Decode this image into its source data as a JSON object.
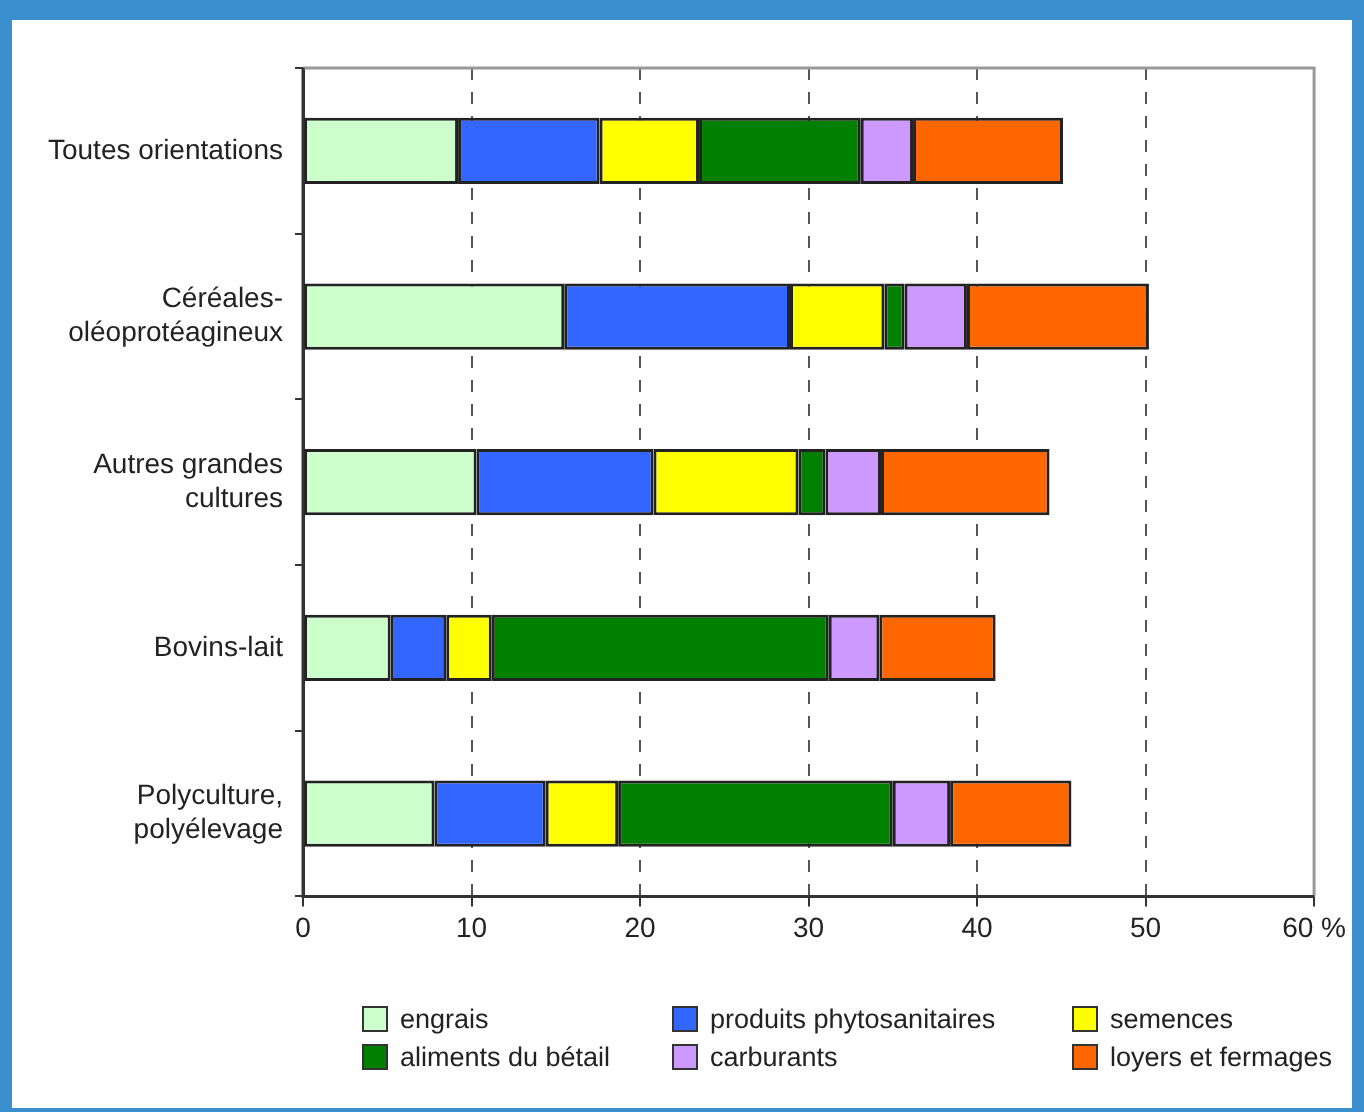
{
  "chart_data": {
    "type": "bar",
    "orientation": "horizontal",
    "stacked": true,
    "categories": [
      "Toutes orientations",
      "Céréales-\noléoprotéagineux",
      "Autres grandes\ncultures",
      "Bovins-lait",
      "Polyculture,\npolyélevage"
    ],
    "series": [
      {
        "name": "engrais",
        "color": "#ccffcc",
        "values": [
          9.2,
          15.5,
          10.3,
          5.2,
          7.8
        ]
      },
      {
        "name": "produits phytosanitaires",
        "color": "#3366ff",
        "values": [
          8.4,
          13.4,
          10.5,
          3.3,
          6.6
        ]
      },
      {
        "name": "semences",
        "color": "#ffff00",
        "values": [
          5.9,
          5.6,
          8.6,
          2.7,
          4.3
        ]
      },
      {
        "name": "aliments du bétail",
        "color": "#008000",
        "values": [
          9.6,
          1.2,
          1.6,
          20.0,
          16.3
        ]
      },
      {
        "name": "carburants",
        "color": "#cc99ff",
        "values": [
          3.1,
          3.7,
          3.3,
          3.0,
          3.4
        ]
      },
      {
        "name": "loyers et fermages",
        "color": "#ff6600",
        "values": [
          8.9,
          10.8,
          10.0,
          6.9,
          7.2
        ]
      }
    ],
    "xlim": [
      0,
      60
    ],
    "xticks": [
      0,
      10,
      20,
      30,
      40,
      50,
      {
        "value": 60,
        "label": "60 %"
      }
    ],
    "grid": "x",
    "legend": "bottom"
  }
}
